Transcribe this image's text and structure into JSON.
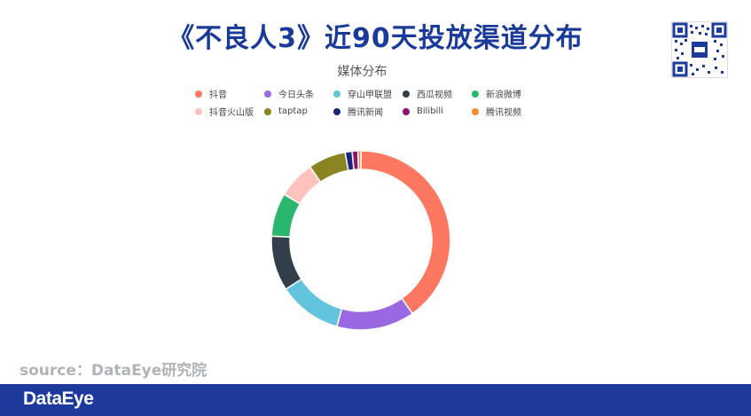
{
  "page": {
    "title": "《不良人3》近90天投放渠道分布",
    "source": "source：DataEye研究院",
    "footer_brand": "DataEye"
  },
  "chart_data": {
    "type": "pie",
    "title": "媒体分布",
    "legend_position": "top",
    "categories": [
      "抖音",
      "今日头条",
      "穿山甲联盟",
      "西瓜视频",
      "新浪微博",
      "抖音火山版",
      "taptap",
      "腾讯新闻",
      "Bilibili",
      "腾讯视频"
    ],
    "values": [
      38.5,
      13.5,
      11.0,
      9.5,
      7.5,
      6.5,
      6.5,
      1.2,
      1.0,
      0.5
    ],
    "colors": [
      "#fe7861",
      "#9b68e4",
      "#62c4dd",
      "#323f4b",
      "#28b76d",
      "#ffc2bc",
      "#8b8423",
      "#1a237e",
      "#8a1471",
      "#f28c2e"
    ]
  }
}
